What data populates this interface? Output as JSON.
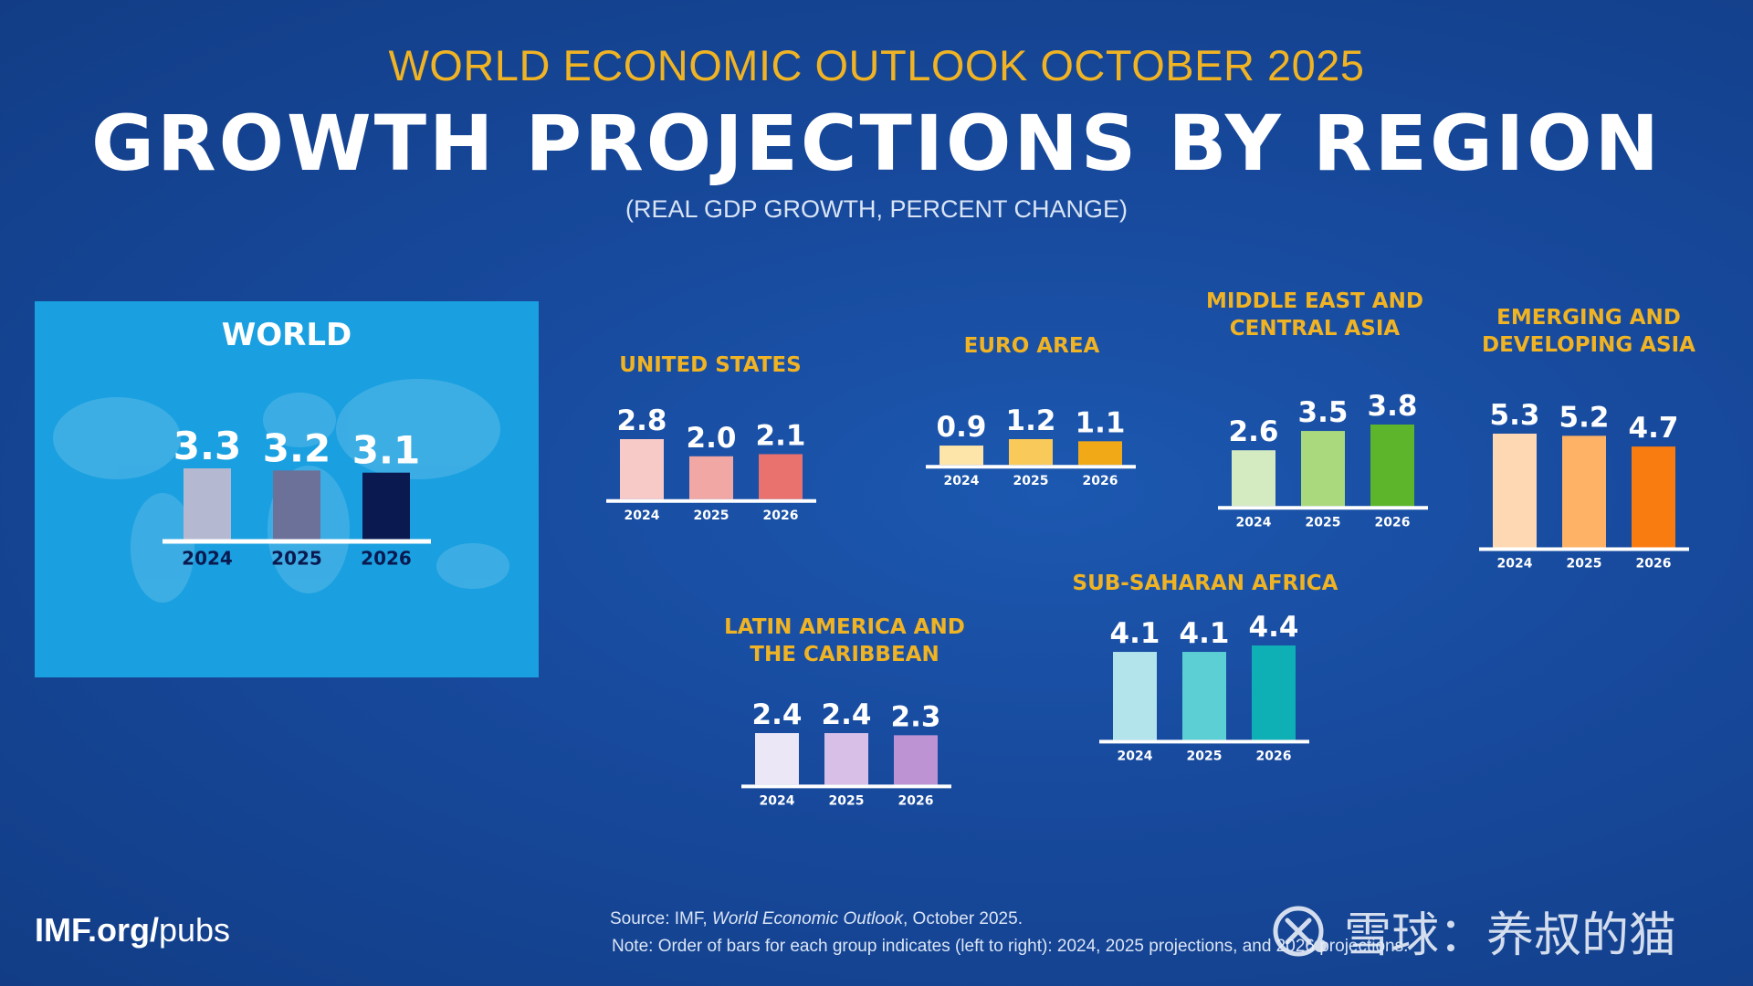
{
  "header": {
    "pre_title": "WORLD ECONOMIC OUTLOOK OCTOBER 2025",
    "title": "GROWTH PROJECTIONS BY REGION",
    "subtitle": "(REAL GDP GROWTH, PERCENT CHANGE)"
  },
  "chart_data": [
    {
      "id": "world",
      "type": "bar",
      "title": "WORLD",
      "categories": [
        "2024",
        "2025",
        "2026"
      ],
      "values": [
        3.3,
        3.2,
        3.1
      ],
      "colors": [
        "#b5b8d1",
        "#6c7199",
        "#0a1a50"
      ]
    },
    {
      "id": "us",
      "type": "bar",
      "title": "UNITED STATES",
      "categories": [
        "2024",
        "2025",
        "2026"
      ],
      "values": [
        2.8,
        2.0,
        2.1
      ],
      "colors": [
        "#f7c9c7",
        "#f1a7a3",
        "#e9716e"
      ]
    },
    {
      "id": "euro",
      "type": "bar",
      "title": "EURO AREA",
      "categories": [
        "2024",
        "2025",
        "2026"
      ],
      "values": [
        0.9,
        1.2,
        1.1
      ],
      "colors": [
        "#fde4a8",
        "#f9c95a",
        "#f2a918"
      ]
    },
    {
      "id": "meca",
      "type": "bar",
      "title": "MIDDLE EAST AND\nCENTRAL ASIA",
      "categories": [
        "2024",
        "2025",
        "2026"
      ],
      "values": [
        2.6,
        3.5,
        3.8
      ],
      "colors": [
        "#d4eac0",
        "#a9d97c",
        "#5cb52a"
      ]
    },
    {
      "id": "eda",
      "type": "bar",
      "title": "EMERGING AND\nDEVELOPING ASIA",
      "categories": [
        "2024",
        "2025",
        "2026"
      ],
      "values": [
        5.3,
        5.2,
        4.7
      ],
      "colors": [
        "#fdd8b2",
        "#fdb266",
        "#f97c10"
      ]
    },
    {
      "id": "lac",
      "type": "bar",
      "title": "LATIN AMERICA AND\nTHE CARIBBEAN",
      "categories": [
        "2024",
        "2025",
        "2026"
      ],
      "values": [
        2.4,
        2.4,
        2.3
      ],
      "colors": [
        "#ece7f6",
        "#d7bfe8",
        "#bd93d3"
      ]
    },
    {
      "id": "ssa",
      "type": "bar",
      "title": "SUB-SAHARAN AFRICA",
      "categories": [
        "2024",
        "2025",
        "2026"
      ],
      "values": [
        4.1,
        4.1,
        4.4
      ],
      "colors": [
        "#b3e4ec",
        "#5ccfd4",
        "#0fb0b5"
      ]
    }
  ],
  "footer": {
    "link_bold": "IMF.org/",
    "link_rest": "pubs",
    "source_label": "Source:  IMF, ",
    "source_italic": "World Economic Outlook",
    "source_rest": ", October 2025.",
    "note": "Note:  Order of bars for each group indicates (left to right): 2024, 2025 projections, and 2026 projections.",
    "watermark": "雪球：养叔的猫"
  },
  "colors": {
    "background": "#17499c",
    "accent": "#f0b323",
    "world_panel": "#1aa0e0"
  }
}
